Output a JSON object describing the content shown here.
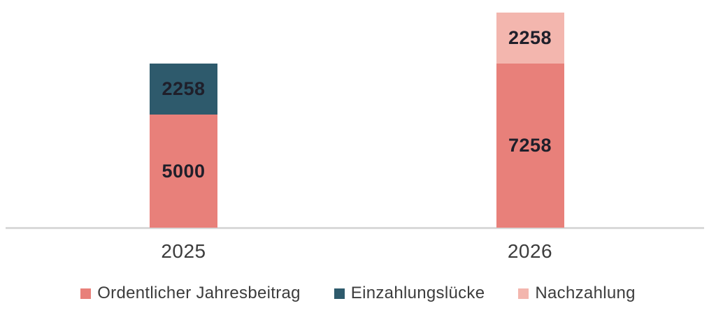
{
  "chart_data": {
    "type": "bar",
    "stacked": true,
    "title": "",
    "xlabel": "",
    "ylabel": "",
    "categories": [
      "2025",
      "2026"
    ],
    "series": [
      {
        "name": "Ordentlicher Jahresbeitrag",
        "color": "#E8807A",
        "values": [
          5000,
          7258
        ]
      },
      {
        "name": "Einzahlungslücke",
        "color": "#2E5A6C",
        "values": [
          2258,
          0
        ]
      },
      {
        "name": "Nachzahlung",
        "color": "#F3B6AE",
        "values": [
          0,
          2258
        ]
      }
    ],
    "bar_totals": [
      7258,
      9516
    ],
    "ylim": [
      0,
      9516
    ],
    "grid": false,
    "value_labels_shown": true,
    "legend_position": "bottom",
    "colors": {
      "axis_line": "#D9D9D9",
      "value_label": "#1F1F2A",
      "tick_label": "#3C3C3C",
      "legend_label": "#3C3C3C",
      "background": "#FFFFFF"
    }
  }
}
